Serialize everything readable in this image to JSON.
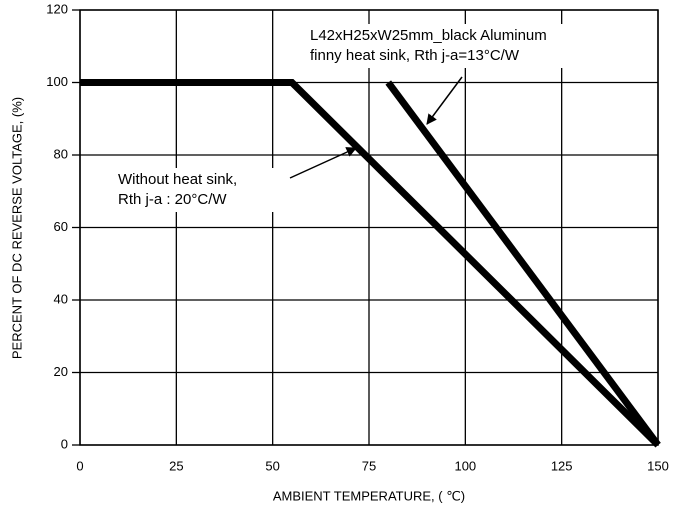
{
  "chart_data": {
    "type": "line",
    "xlabel": "AMBIENT TEMPERATURE, ( ℃)",
    "ylabel": "PERCENT OF DC REVERSE VOLTAGE, (%)",
    "xlim": [
      0,
      150
    ],
    "xticks": [
      0,
      25,
      50,
      75,
      100,
      125,
      150
    ],
    "ylim": [
      0,
      120
    ],
    "yticks": [
      0,
      20,
      40,
      60,
      80,
      100,
      120
    ],
    "grid": true,
    "series": [
      {
        "color": "#000000",
        "x": [
          0,
          55,
          150
        ],
        "values": [
          100,
          100,
          0
        ]
      },
      {
        "color": "#000000",
        "x": [
          80,
          150
        ],
        "values": [
          100,
          0
        ]
      }
    ],
    "annotations": [
      {
        "lines": [
          "L42xH25xW25mm_black Aluminum",
          "finny heat sink, Rth j-a=13°C/W"
        ]
      },
      {
        "lines": [
          "Without heat sink,",
          "Rth j-a : 20°C/W"
        ]
      }
    ]
  }
}
